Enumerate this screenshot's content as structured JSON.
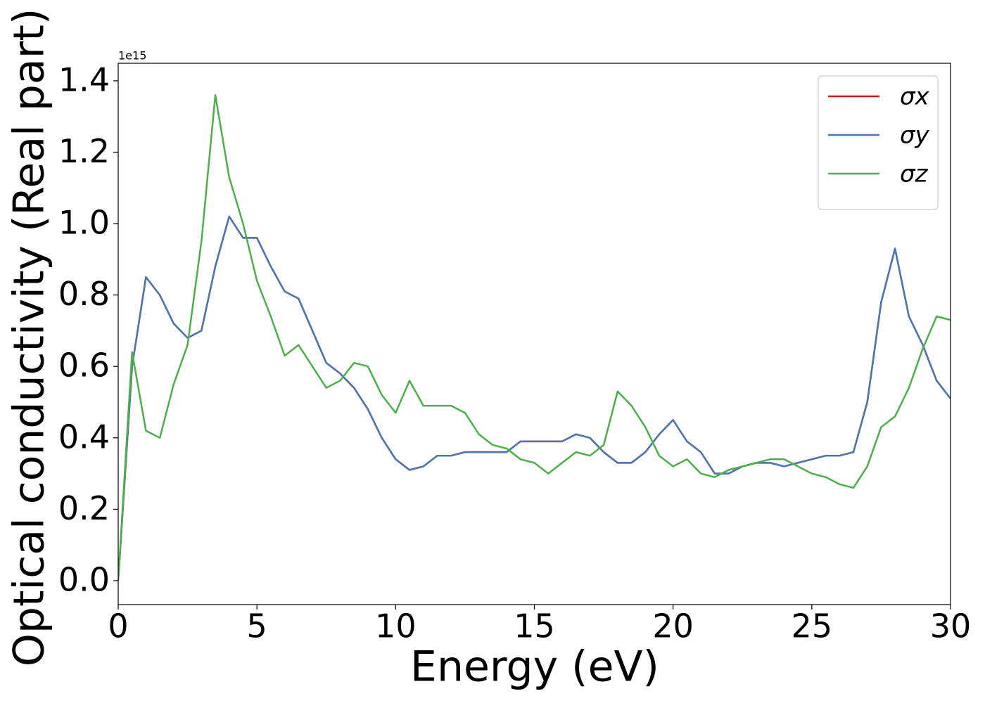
{
  "chart_data": {
    "type": "line",
    "x_label": "Energy (eV)",
    "y_label": "Optical conductivity (Real part)",
    "y_offset_text": "1e15",
    "xlim": [
      0,
      30
    ],
    "ylim": [
      -0.067,
      1.449
    ],
    "xticks": [
      0,
      5,
      10,
      15,
      20,
      25,
      30
    ],
    "yticks": [
      {
        "value": 0,
        "label": "0.0"
      },
      0.2,
      0.4,
      0.6,
      0.8,
      {
        "value": 1,
        "label": "1.0"
      },
      1.2,
      1.4
    ],
    "legend": "upper right",
    "x": [
      0,
      0.5,
      1,
      1.5,
      2,
      2.5,
      3,
      3.5,
      4,
      4.5,
      5,
      5.5,
      6,
      6.5,
      7,
      7.5,
      8,
      8.5,
      9,
      9.5,
      10,
      10.5,
      11,
      11.5,
      12,
      12.5,
      13,
      13.5,
      14,
      14.5,
      15,
      15.5,
      16,
      16.5,
      17,
      17.5,
      18,
      18.5,
      19,
      19.5,
      20,
      20.5,
      21,
      21.5,
      22,
      22.5,
      23,
      23.5,
      24,
      24.5,
      25,
      25.5,
      26,
      26.5,
      27,
      27.5,
      28,
      28.5,
      29,
      29.5,
      30
    ],
    "series": [
      {
        "name": "σx",
        "color": "#d7191c",
        "values": [
          0,
          0.6,
          0.85,
          0.8,
          0.72,
          0.68,
          0.7,
          0.88,
          1.02,
          0.96,
          0.96,
          0.88,
          0.81,
          0.79,
          0.7,
          0.61,
          0.58,
          0.54,
          0.48,
          0.4,
          0.34,
          0.31,
          0.32,
          0.35,
          0.35,
          0.36,
          0.36,
          0.36,
          0.36,
          0.39,
          0.39,
          0.39,
          0.39,
          0.41,
          0.4,
          0.36,
          0.33,
          0.33,
          0.36,
          0.41,
          0.45,
          0.39,
          0.36,
          0.3,
          0.3,
          0.32,
          0.33,
          0.33,
          0.32,
          0.33,
          0.34,
          0.35,
          0.35,
          0.36,
          0.5,
          0.78,
          0.93,
          0.74,
          0.66,
          0.56,
          0.51
        ]
      },
      {
        "name": "σy",
        "color": "#4a78b0",
        "values": [
          0,
          0.6,
          0.85,
          0.8,
          0.72,
          0.68,
          0.7,
          0.88,
          1.02,
          0.96,
          0.96,
          0.88,
          0.81,
          0.79,
          0.7,
          0.61,
          0.58,
          0.54,
          0.48,
          0.4,
          0.34,
          0.31,
          0.32,
          0.35,
          0.35,
          0.36,
          0.36,
          0.36,
          0.36,
          0.39,
          0.39,
          0.39,
          0.39,
          0.41,
          0.4,
          0.36,
          0.33,
          0.33,
          0.36,
          0.41,
          0.45,
          0.39,
          0.36,
          0.3,
          0.3,
          0.32,
          0.33,
          0.33,
          0.32,
          0.33,
          0.34,
          0.35,
          0.35,
          0.36,
          0.5,
          0.78,
          0.93,
          0.74,
          0.66,
          0.56,
          0.51
        ]
      },
      {
        "name": "σz",
        "color": "#4daf4a",
        "values": [
          0,
          0.64,
          0.42,
          0.4,
          0.55,
          0.66,
          0.95,
          1.36,
          1.13,
          1.0,
          0.84,
          0.74,
          0.63,
          0.66,
          0.6,
          0.54,
          0.56,
          0.61,
          0.6,
          0.52,
          0.47,
          0.56,
          0.49,
          0.49,
          0.49,
          0.47,
          0.41,
          0.38,
          0.37,
          0.34,
          0.33,
          0.3,
          0.33,
          0.36,
          0.35,
          0.38,
          0.53,
          0.49,
          0.43,
          0.35,
          0.32,
          0.34,
          0.3,
          0.29,
          0.31,
          0.32,
          0.33,
          0.34,
          0.34,
          0.32,
          0.3,
          0.29,
          0.27,
          0.26,
          0.32,
          0.43,
          0.46,
          0.54,
          0.65,
          0.74,
          0.73
        ]
      }
    ]
  }
}
